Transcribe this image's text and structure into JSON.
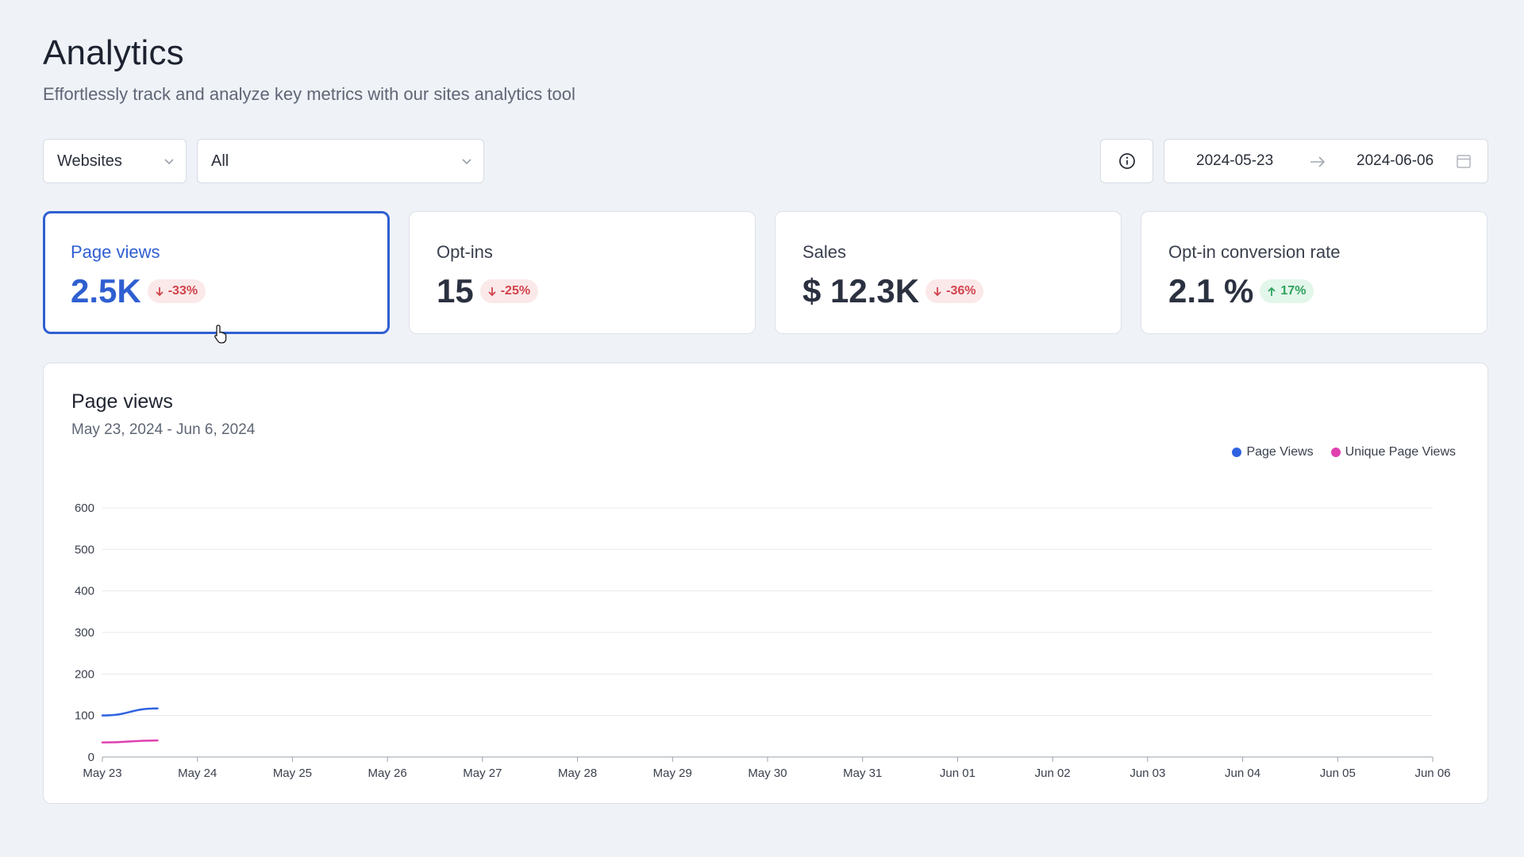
{
  "header": {
    "title": "Analytics",
    "subtitle": "Effortlessly track and analyze key metrics with our sites analytics tool"
  },
  "filters": {
    "type_select": "Websites",
    "site_select": "All"
  },
  "date_range": {
    "start": "2024-05-23",
    "end": "2024-06-06"
  },
  "cards": [
    {
      "label": "Page views",
      "value": "2.5K",
      "change": "-33%",
      "direction": "down"
    },
    {
      "label": "Opt-ins",
      "value": "15",
      "change": "-25%",
      "direction": "down"
    },
    {
      "label": "Sales",
      "value": "$ 12.3K",
      "change": "-36%",
      "direction": "down"
    },
    {
      "label": "Opt-in conversion rate",
      "value": "2.1 %",
      "change": "17%",
      "direction": "up"
    }
  ],
  "chart_panel": {
    "title": "Page views",
    "subtitle": "May 23, 2024 - Jun 6, 2024"
  },
  "colors": {
    "accent": "#2f5fd1",
    "page_views": "#2f63e0",
    "unique_page_views": "#e040b0",
    "down": "#d2434c",
    "up": "#2fa35f"
  },
  "chart_data": {
    "type": "line",
    "categories": [
      "May 23",
      "May 24",
      "May 25",
      "May 26",
      "May 27",
      "May 28",
      "May 29",
      "May 30",
      "May 31",
      "Jun 01",
      "Jun 02",
      "Jun 03",
      "Jun 04",
      "Jun 05",
      "Jun 06"
    ],
    "series": [
      {
        "name": "Page Views",
        "color": "#2f63e0",
        "points": [
          [
            0,
            100
          ],
          [
            0.58,
            117
          ]
        ]
      },
      {
        "name": "Unique Page Views",
        "color": "#e040b0",
        "points": [
          [
            0,
            35
          ],
          [
            0.58,
            40
          ]
        ]
      }
    ],
    "yticks": [
      0,
      100,
      200,
      300,
      400,
      500,
      600
    ],
    "ylim": [
      0,
      600
    ],
    "grid": true,
    "legend_position": "top-right"
  }
}
